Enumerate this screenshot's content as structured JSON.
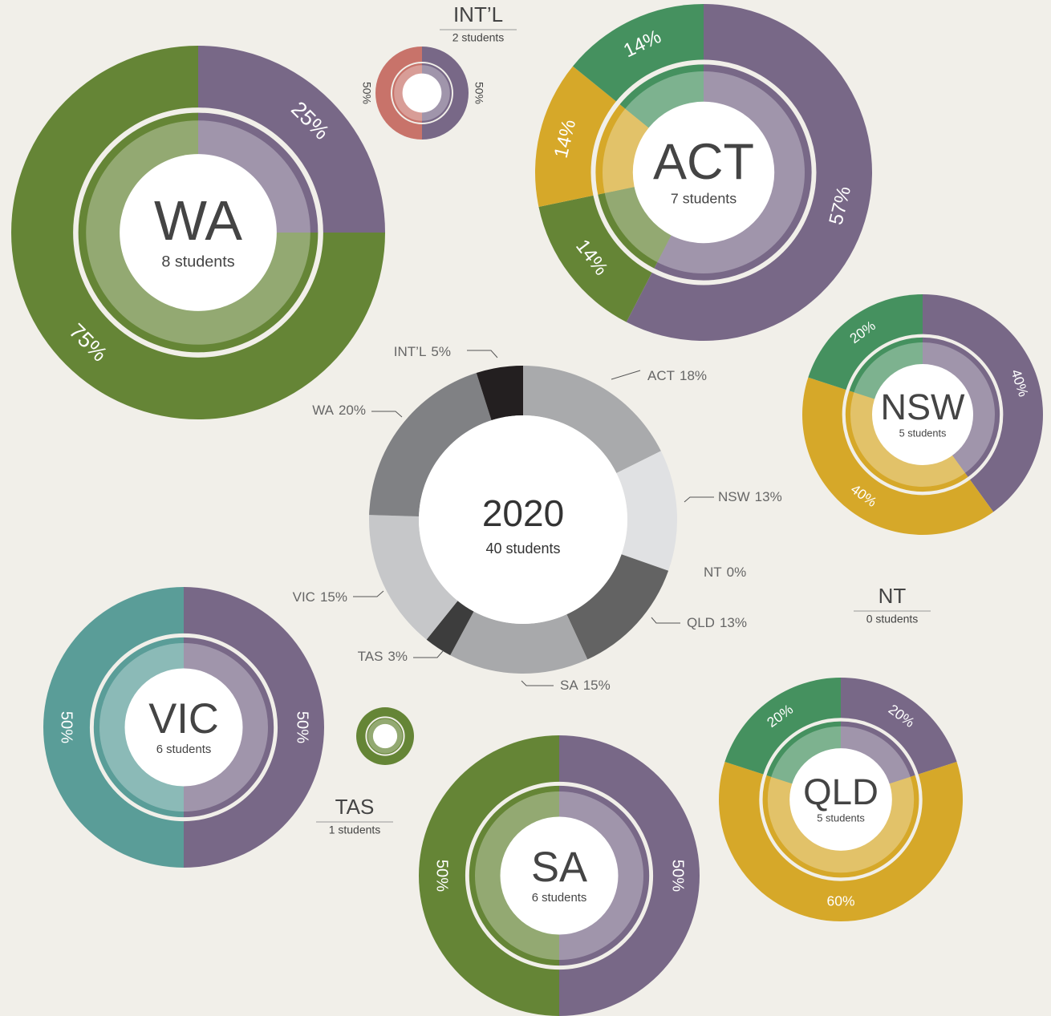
{
  "chart_data": [
    {
      "type": "donut",
      "title": "2020",
      "subtitle": "40 students",
      "categories": [
        "ACT",
        "NSW",
        "NT",
        "QLD",
        "SA",
        "TAS",
        "VIC",
        "WA",
        "INT’L"
      ],
      "values": [
        18,
        13,
        0,
        13,
        15,
        3,
        15,
        20,
        5
      ],
      "value_labels": [
        "18%",
        "13%",
        "0%",
        "13%",
        "15%",
        "3%",
        "15%",
        "20%",
        "5%"
      ],
      "colors": [
        "#a9aaac",
        "#e0e1e3",
        "#cfd0d2",
        "#636363",
        "#a8a9ab",
        "#3d3d3d",
        "#c6c7c9",
        "#808184",
        "#231f20"
      ]
    },
    {
      "type": "donut",
      "title": "WA",
      "subtitle": "8 students",
      "values": [
        25,
        75
      ],
      "value_labels": [
        "25%",
        "75%"
      ],
      "colors": [
        "#786887",
        "#658536"
      ]
    },
    {
      "type": "donut",
      "title": "ACT",
      "subtitle": "7 students",
      "values": [
        57,
        14,
        14,
        14
      ],
      "value_labels": [
        "57%",
        "14%",
        "14%",
        "14%"
      ],
      "colors": [
        "#786887",
        "#658536",
        "#d6a829",
        "#45915f"
      ]
    },
    {
      "type": "donut",
      "title": "INT’L",
      "subtitle": "2 students",
      "values": [
        50,
        50
      ],
      "value_labels": [
        "50%",
        "50%"
      ],
      "colors": [
        "#786887",
        "#c8736a"
      ]
    },
    {
      "type": "donut",
      "title": "NSW",
      "subtitle": "5 students",
      "values": [
        40,
        40,
        20
      ],
      "value_labels": [
        "40%",
        "40%",
        "20%"
      ],
      "colors": [
        "#786887",
        "#d6a829",
        "#45915f"
      ]
    },
    {
      "type": "donut",
      "title": "VIC",
      "subtitle": "6 students",
      "values": [
        50,
        50
      ],
      "value_labels": [
        "50%",
        "50%"
      ],
      "colors": [
        "#786887",
        "#5a9d98"
      ]
    },
    {
      "type": "donut",
      "title": "TAS",
      "subtitle": "1 students",
      "values": [
        100
      ],
      "colors": [
        "#658536"
      ]
    },
    {
      "type": "donut",
      "title": "SA",
      "subtitle": "6 students",
      "values": [
        50,
        50
      ],
      "value_labels": [
        "50%",
        "50%"
      ],
      "colors": [
        "#786887",
        "#658536"
      ]
    },
    {
      "type": "donut",
      "title": "QLD",
      "subtitle": "5 students",
      "values": [
        20,
        60,
        20
      ],
      "value_labels": [
        "20%",
        "60%",
        "20%"
      ],
      "colors": [
        "#786887",
        "#d6a829",
        "#45915f"
      ]
    },
    {
      "type": "donut",
      "title": "NT",
      "subtitle": "0 students"
    }
  ]
}
